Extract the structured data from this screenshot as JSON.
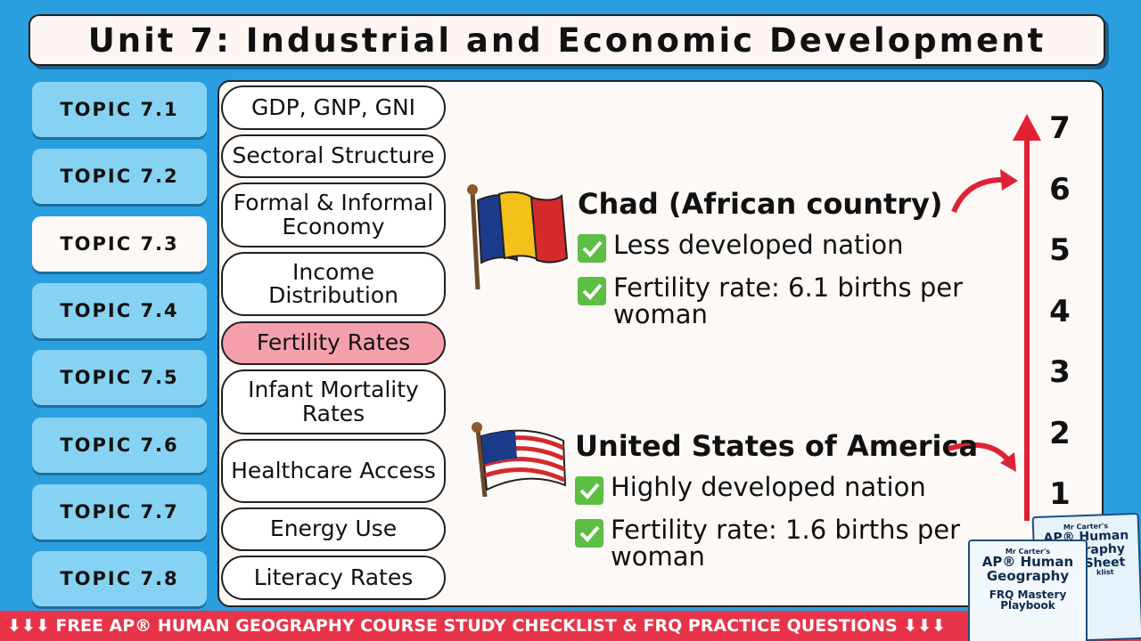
{
  "header": {
    "title": "Unit 7: Industrial and Economic Development"
  },
  "topics": [
    "TOPIC 7.1",
    "TOPIC 7.2",
    "TOPIC 7.3",
    "TOPIC 7.4",
    "TOPIC 7.5",
    "TOPIC 7.6",
    "TOPIC 7.7",
    "TOPIC 7.8"
  ],
  "subtopics": [
    "GDP, GNP, GNI",
    "Sectoral Structure",
    "Formal & Informal Economy",
    "Income Distribution",
    "Fertility Rates",
    "Infant Mortality Rates",
    "Healthcare Access",
    "Energy Use",
    "Literacy Rates"
  ],
  "countries": [
    {
      "name": "Chad (African country)",
      "points": [
        "Less developed nation",
        "Fertility rate: 6.1 births per woman"
      ]
    },
    {
      "name": "United States of America",
      "points": [
        "Highly developed nation",
        "Fertility rate: 1.6 births per woman"
      ]
    }
  ],
  "scale": [
    "7",
    "6",
    "5",
    "4",
    "3",
    "2",
    "1"
  ],
  "banner": "⬇⬇⬇ FREE AP® HUMAN GEOGRAPHY COURSE STUDY CHECKLIST & FRQ PRACTICE QUESTIONS ⬇⬇⬇",
  "books": [
    {
      "author": "Mr Carter's",
      "title": [
        "AP® Human",
        "Geography",
        "Sheet"
      ],
      "footer": "klist"
    },
    {
      "author": "Mr Carter's",
      "title": [
        "AP® Human",
        "Geography",
        "FRQ Mastery",
        "Playbook"
      ]
    }
  ]
}
